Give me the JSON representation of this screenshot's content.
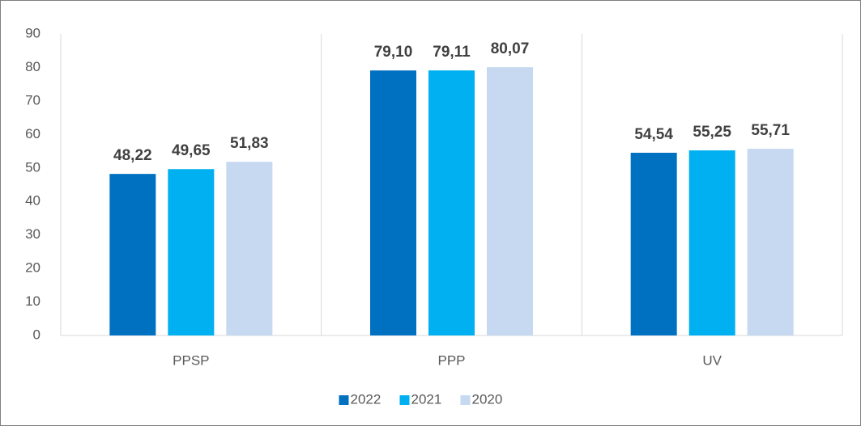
{
  "chart_data": {
    "type": "bar",
    "categories": [
      "PPSP",
      "PPP",
      "UV"
    ],
    "series": [
      {
        "name": "2022",
        "color": "#0070c0",
        "values": [
          48.22,
          79.1,
          54.54
        ],
        "value_labels": [
          "48,22",
          "79,10",
          "54,54"
        ]
      },
      {
        "name": "2021",
        "color": "#00b0f0",
        "values": [
          49.65,
          79.11,
          55.25
        ],
        "value_labels": [
          "49,65",
          "79,11",
          "55,25"
        ]
      },
      {
        "name": "2020",
        "color": "#c6d9f1",
        "values": [
          51.83,
          80.07,
          55.71
        ],
        "value_labels": [
          "51,83",
          "80,07",
          "55,71"
        ]
      }
    ],
    "ylim": [
      0,
      90
    ],
    "yticks": [
      0,
      10,
      20,
      30,
      40,
      50,
      60,
      70,
      80,
      90
    ],
    "grid": false,
    "legend": "bottom"
  }
}
